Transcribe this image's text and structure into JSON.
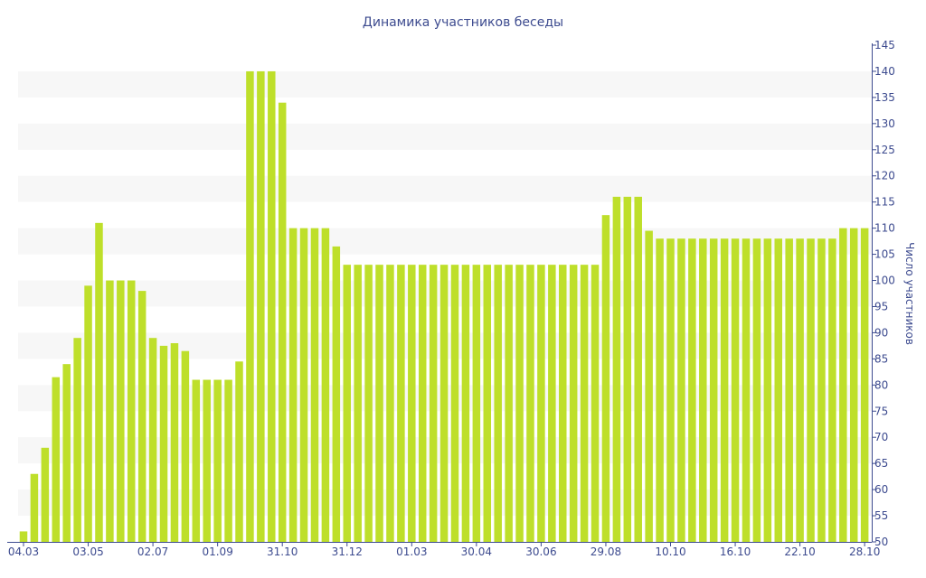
{
  "chart_data": {
    "type": "bar",
    "title": "Динамика участников беседы",
    "ylabel": "Число участников",
    "xlabel": "",
    "ylim": [
      50,
      145
    ],
    "ytick_step": 5,
    "y_axis_side": "right",
    "grid": "alternating horizontal bands",
    "legend": "none",
    "bar_color": "#bedf2a",
    "band_color": "#f7f7f7",
    "text_color": "#3d4b8f",
    "axis_color": "#3d4b8f",
    "x_tick_labels": [
      {
        "label": "04.03",
        "index": 0
      },
      {
        "label": "03.05",
        "index": 6
      },
      {
        "label": "02.07",
        "index": 12
      },
      {
        "label": "01.09",
        "index": 18
      },
      {
        "label": "31.10",
        "index": 24
      },
      {
        "label": "31.12",
        "index": 30
      },
      {
        "label": "01.03",
        "index": 36
      },
      {
        "label": "30.04",
        "index": 42
      },
      {
        "label": "30.06",
        "index": 48
      },
      {
        "label": "29.08",
        "index": 54
      },
      {
        "label": "10.10",
        "index": 60
      },
      {
        "label": "16.10",
        "index": 66
      },
      {
        "label": "22.10",
        "index": 72
      },
      {
        "label": "28.10",
        "index": 78
      }
    ],
    "values": [
      52,
      63,
      68,
      81.5,
      84,
      89,
      99,
      111,
      100,
      100,
      100,
      98,
      89,
      87.5,
      88,
      86.5,
      81,
      81,
      81,
      81,
      84.5,
      140,
      140,
      140,
      134,
      110,
      110,
      110,
      110,
      106.5,
      103,
      103,
      103,
      103,
      103,
      103,
      103,
      103,
      103,
      103,
      103,
      103,
      103,
      103,
      103,
      103,
      103,
      103,
      103,
      103,
      103,
      103,
      103,
      103,
      112.5,
      116,
      116,
      116,
      109.5,
      108,
      108,
      108,
      108,
      108,
      108,
      108,
      108,
      108,
      108,
      108,
      108,
      108,
      108,
      108,
      108,
      108,
      110,
      110,
      110
    ]
  }
}
